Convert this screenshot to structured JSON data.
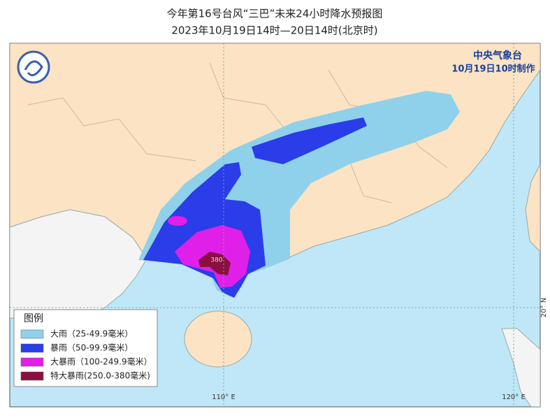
{
  "header": {
    "title": "今年第16号台风“三巴”未来24小时降水预报图",
    "subtitle": "2023年10月19日14时—20日14时(北京时)"
  },
  "agency": {
    "name": "中央气象台",
    "issued": "10月19日10时制作"
  },
  "legend": {
    "title": "图例",
    "items": [
      {
        "label": "大雨（25-49.9毫米）",
        "color": "#8fd1ea"
      },
      {
        "label": "暴雨（50-99.9毫米）",
        "color": "#2a3de8"
      },
      {
        "label": "大暴雨（100-249.9毫米）",
        "color": "#e020e8"
      },
      {
        "label": "特大暴雨(250.0-380毫米)",
        "color": "#8a1040"
      }
    ]
  },
  "annotations": {
    "peak": "380"
  },
  "axes": {
    "lon_labels": [
      "110° E",
      "120° E"
    ],
    "lat_labels": [
      "20° N"
    ]
  }
}
